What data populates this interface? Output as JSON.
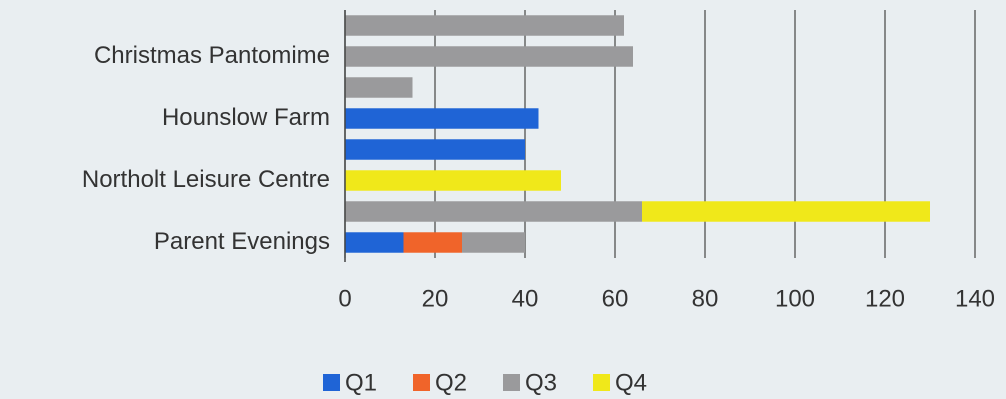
{
  "chart_data": {
    "type": "stacked-horizontal-bar",
    "categories": [
      null,
      "Christmas Pantomime",
      null,
      "Hounslow Farm",
      null,
      "Northolt Leisure Centre",
      null,
      "Parent Evenings"
    ],
    "series": [
      {
        "name": "Q1",
        "color": "#1f64d6",
        "values": [
          null,
          null,
          null,
          43,
          40,
          null,
          null,
          13
        ]
      },
      {
        "name": "Q2",
        "color": "#f0642a",
        "values": [
          null,
          null,
          null,
          null,
          null,
          null,
          null,
          13
        ]
      },
      {
        "name": "Q3",
        "color": "#9a9a9c",
        "values": [
          62,
          64,
          15,
          null,
          null,
          null,
          66,
          14
        ]
      },
      {
        "name": "Q4",
        "color": "#f0e81a",
        "values": [
          null,
          null,
          null,
          null,
          null,
          48,
          64,
          null
        ]
      }
    ],
    "xlim": [
      0,
      140
    ],
    "xticks": [
      0,
      20,
      40,
      60,
      80,
      100,
      120,
      140
    ],
    "grid": true,
    "legend": "bottom"
  }
}
